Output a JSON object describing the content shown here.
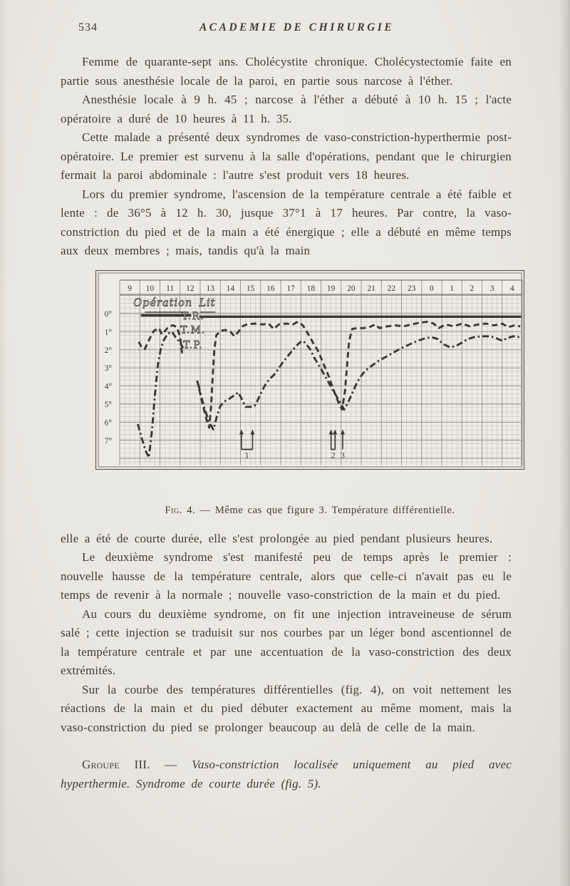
{
  "page": {
    "number": "534",
    "header_title": "ACADEMIE DE CHIRURGIE"
  },
  "paragraphs_before_figure": [
    "Femme de quarante-sept ans. Cholécystite chronique. Cholécystectomie faite en partie sous anesthésie locale de la paroi, en partie sous narcose à l'éther.",
    "Anesthésie locale à 9 h. 45 ; narcose à l'éther a débuté à 10 h. 15 ; l'acte opératoire a duré de 10 heures à 11 h. 35.",
    "Cette malade a présenté deux syndromes de vaso-constriction-hyperthermie post-opératoire. Le premier est survenu à la salle d'opérations, pendant que le chirurgien fermait la paroi abdominale : l'autre s'est produit vers 18 heures.",
    "Lors du premier syndrome, l'ascension de la température centrale a été faible et lente : de 36°5 à 12 h. 30, jusque 37°1 à 17 heures. Par contre, la vaso-constriction du pied et de la main a été énergique ; elle a débuté en même temps aux deux membres ; mais, tandis qu'à la main"
  ],
  "figure_caption": {
    "label": "Fig. 4.",
    "rest": " — Même cas que figure 3. Température différentielle."
  },
  "paragraphs_after_figure": [
    "elle a été de courte durée, elle s'est prolongée au pied pendant plusieurs heures.",
    "Le deuxième syndrome s'est manifesté peu de temps après le premier : nouvelle hausse de la température centrale, alors que celle-ci n'avait pas eu le temps de revenir à la normale ; nouvelle vaso-constriction de la main et du pied.",
    "Au cours du deuxième syndrome, on fit une injection intraveineuse de sérum salé ; cette injection se traduisit sur nos courbes par un léger bond ascentionnel de la température centrale et par une accentuation de la vaso-constriction des deux extrémités.",
    "Sur la courbe des températures différentielles (fig. 4), on voit nettement les réactions de la main et du pied débuter exactement au même moment, mais la vaso-constriction du pied se prolonger beaucoup au delà de celle de la main."
  ],
  "group_heading": {
    "lead": "Groupe III.",
    "dash": " — ",
    "italic_text": "Vaso-constriction localisée uniquement au pied avec hyperthermie. Syndrome de courte durée (fig. 5)."
  },
  "colors": {
    "ink": "#3b3833",
    "frame": "#5f5b53",
    "grid_minor": "#c7c3b8",
    "grid_major": "#94908a",
    "chart_paper": "#edece5"
  },
  "chart_data": {
    "type": "line",
    "title": "Température différentielle (même cas que figure 3)",
    "x_axis": {
      "position": "top",
      "unit": "heures",
      "tick_labels": [
        "9",
        "10",
        "11",
        "12",
        "13",
        "14",
        "15",
        "16",
        "17",
        "18",
        "19",
        "20",
        "21",
        "22",
        "23",
        "0",
        "1",
        "2",
        "3",
        "4"
      ],
      "start_hour": 9
    },
    "y_axis": {
      "direction": "down",
      "unit": "degrés de différence",
      "tick_labels": [
        "0°",
        "1°",
        "2°",
        "3°",
        "4°",
        "5°",
        "6°",
        "7°"
      ],
      "range": [
        0,
        7
      ]
    },
    "annotations": [
      {
        "text": "Opération",
        "h": 10.65,
        "d": -0.42,
        "underline": [
          9.75,
          11.6,
          -0.08
        ]
      },
      {
        "text": "Lit",
        "h": 12.85,
        "d": -0.42,
        "underline": [
          12.5,
          13.25,
          -0.08
        ]
      }
    ],
    "series": [
      {
        "name": "T.R.",
        "line_style": "solid",
        "width": 3.4,
        "label_pos": {
          "h": 12.15,
          "d": 0.12
        },
        "segments": [
          [
            [
              9.55,
              0.1
            ],
            [
              12.05,
              0.1
            ]
          ],
          [
            [
              12.45,
              0.17
            ],
            [
              28.45,
              0.17
            ]
          ]
        ]
      },
      {
        "name": "T.M.",
        "line_style": "dashed",
        "width": 2.9,
        "label_pos": {
          "h": 12.15,
          "d": 0.88
        },
        "segments": [
          [
            [
              9.45,
              1.55
            ],
            [
              9.6,
              1.9
            ],
            [
              9.75,
              1.95
            ],
            [
              10.0,
              1.35
            ],
            [
              10.2,
              0.95
            ],
            [
              10.45,
              0.8
            ],
            [
              10.6,
              1.15
            ],
            [
              10.75,
              0.95
            ],
            [
              10.95,
              0.7
            ],
            [
              11.15,
              0.65
            ],
            [
              11.35,
              0.75
            ],
            [
              11.5,
              1.3
            ],
            [
              11.62,
              2.35
            ]
          ],
          [
            [
              12.35,
              3.7
            ],
            [
              12.6,
              4.9
            ],
            [
              12.8,
              5.8
            ],
            [
              12.95,
              6.3
            ],
            [
              13.05,
              5.0
            ],
            [
              13.12,
              3.5
            ],
            [
              13.2,
              2.0
            ],
            [
              13.3,
              1.2
            ],
            [
              13.5,
              0.95
            ],
            [
              13.75,
              0.9
            ],
            [
              14.0,
              1.0
            ],
            [
              14.2,
              1.25
            ],
            [
              14.4,
              1.0
            ],
            [
              14.6,
              0.7
            ],
            [
              14.8,
              0.6
            ],
            [
              15.2,
              0.55
            ],
            [
              15.6,
              0.6
            ],
            [
              15.9,
              0.55
            ],
            [
              16.15,
              0.85
            ],
            [
              16.4,
              0.6
            ],
            [
              16.8,
              0.55
            ],
            [
              17.1,
              0.6
            ],
            [
              17.35,
              0.45
            ],
            [
              17.6,
              0.65
            ],
            [
              17.85,
              1.1
            ],
            [
              18.1,
              1.6
            ],
            [
              18.35,
              2.05
            ],
            [
              18.6,
              2.7
            ],
            [
              18.9,
              3.5
            ],
            [
              19.15,
              4.3
            ],
            [
              19.4,
              5.0
            ],
            [
              19.55,
              5.3
            ],
            [
              19.7,
              4.2
            ],
            [
              19.8,
              2.8
            ],
            [
              19.9,
              1.5
            ],
            [
              20.05,
              0.85
            ],
            [
              20.3,
              0.8
            ],
            [
              20.6,
              0.8
            ],
            [
              20.9,
              0.75
            ],
            [
              21.2,
              0.6
            ],
            [
              21.4,
              0.8
            ],
            [
              21.8,
              0.7
            ],
            [
              22.2,
              0.65
            ],
            [
              22.6,
              0.7
            ],
            [
              23.0,
              0.6
            ],
            [
              23.4,
              0.5
            ],
            [
              23.8,
              0.45
            ],
            [
              24.1,
              0.55
            ],
            [
              24.35,
              0.8
            ],
            [
              24.7,
              0.6
            ],
            [
              25.1,
              0.7
            ],
            [
              25.5,
              0.55
            ],
            [
              25.9,
              0.7
            ],
            [
              26.3,
              0.6
            ],
            [
              26.7,
              0.55
            ],
            [
              27.1,
              0.65
            ],
            [
              27.5,
              0.55
            ],
            [
              27.8,
              0.75
            ],
            [
              28.1,
              0.65
            ],
            [
              28.4,
              0.7
            ]
          ]
        ]
      },
      {
        "name": "T.P.",
        "line_style": "dash-dot",
        "width": 2.9,
        "label_pos": {
          "h": 12.15,
          "d": 1.72
        },
        "segments": [
          [
            [
              9.4,
              6.1
            ],
            [
              9.6,
              6.9
            ],
            [
              9.8,
              7.6
            ],
            [
              9.95,
              7.95
            ],
            [
              10.1,
              6.5
            ],
            [
              10.25,
              4.5
            ],
            [
              10.4,
              2.8
            ],
            [
              10.55,
              1.9
            ],
            [
              10.7,
              1.45
            ],
            [
              10.9,
              1.1
            ],
            [
              11.1,
              1.0
            ],
            [
              11.3,
              1.35
            ],
            [
              11.5,
              1.6
            ],
            [
              11.65,
              1.9
            ]
          ],
          [
            [
              12.4,
              3.9
            ],
            [
              12.7,
              5.2
            ],
            [
              12.95,
              6.0
            ],
            [
              13.15,
              6.4
            ],
            [
              13.35,
              5.6
            ],
            [
              13.5,
              5.1
            ],
            [
              13.7,
              4.85
            ],
            [
              13.95,
              4.7
            ],
            [
              14.2,
              4.5
            ],
            [
              14.4,
              4.35
            ],
            [
              14.6,
              4.8
            ],
            [
              14.75,
              5.15
            ],
            [
              15.0,
              5.15
            ],
            [
              15.2,
              5.1
            ],
            [
              15.35,
              4.8
            ],
            [
              15.55,
              4.3
            ],
            [
              15.75,
              3.9
            ],
            [
              15.95,
              3.6
            ],
            [
              16.15,
              3.4
            ],
            [
              16.35,
              3.1
            ],
            [
              16.6,
              2.7
            ],
            [
              16.85,
              2.35
            ],
            [
              17.1,
              2.0
            ],
            [
              17.35,
              1.7
            ],
            [
              17.55,
              1.5
            ],
            [
              17.7,
              1.6
            ],
            [
              17.95,
              1.95
            ],
            [
              18.2,
              2.5
            ],
            [
              18.5,
              3.05
            ],
            [
              18.8,
              3.65
            ],
            [
              19.1,
              4.25
            ],
            [
              19.4,
              4.8
            ],
            [
              19.65,
              5.3
            ],
            [
              19.85,
              4.9
            ],
            [
              20.05,
              4.4
            ],
            [
              20.25,
              3.9
            ],
            [
              20.45,
              3.5
            ],
            [
              20.7,
              3.15
            ],
            [
              21.0,
              2.9
            ],
            [
              21.3,
              2.65
            ],
            [
              21.7,
              2.4
            ],
            [
              22.1,
              2.15
            ],
            [
              22.5,
              1.9
            ],
            [
              22.9,
              1.7
            ],
            [
              23.3,
              1.5
            ],
            [
              23.7,
              1.35
            ],
            [
              24.0,
              1.3
            ],
            [
              24.3,
              1.4
            ],
            [
              24.6,
              1.7
            ],
            [
              24.9,
              1.85
            ],
            [
              25.2,
              1.8
            ],
            [
              25.5,
              1.6
            ],
            [
              25.8,
              1.4
            ],
            [
              26.1,
              1.3
            ],
            [
              26.5,
              1.25
            ],
            [
              26.9,
              1.25
            ],
            [
              27.2,
              1.35
            ],
            [
              27.5,
              1.5
            ],
            [
              27.75,
              1.35
            ],
            [
              28.05,
              1.25
            ],
            [
              28.35,
              1.3
            ]
          ]
        ]
      }
    ],
    "injections": [
      {
        "label": "1",
        "arrows": [
          14.55,
          15.1
        ],
        "bracket": true
      },
      {
        "label": "2",
        "arrows": [
          19.0,
          19.2
        ],
        "bracket": true
      },
      {
        "label": "3",
        "arrows": [
          19.58
        ],
        "bracket": false
      }
    ]
  }
}
